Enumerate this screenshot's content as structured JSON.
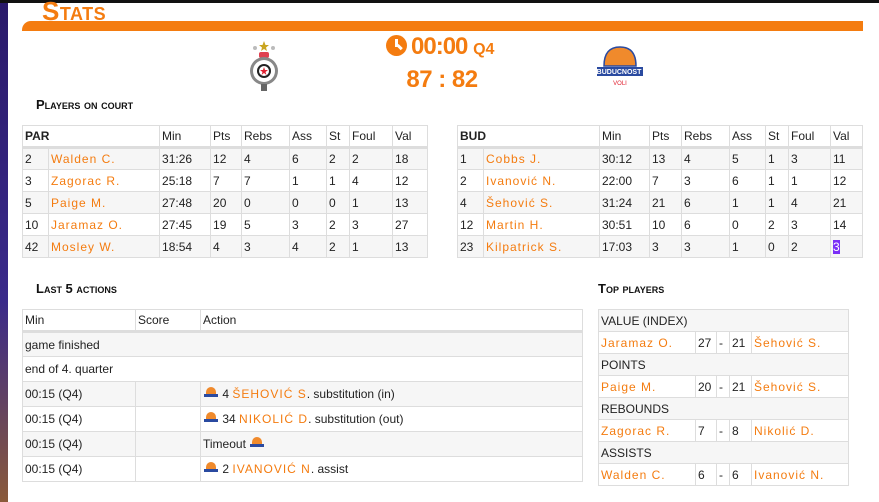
{
  "page": {
    "title": "Stats",
    "accent": "#f47c10"
  },
  "game": {
    "time": "00:00",
    "quarter": "Q4",
    "score": "87 : 82",
    "home_logo": "partizan-logo",
    "away_logo": "buducnost-logo",
    "away_logo_text": "BUDUCNOST VOLI"
  },
  "on_court": {
    "heading": "Players on court",
    "columns": [
      "Min",
      "Pts",
      "Rebs",
      "Ass",
      "St",
      "Foul",
      "Val"
    ],
    "home": {
      "team": "PAR",
      "rows": [
        [
          "2",
          "Walden C.",
          "31:26",
          "12",
          "4",
          "6",
          "2",
          "2",
          "18"
        ],
        [
          "3",
          "Zagorac R.",
          "25:18",
          "7",
          "7",
          "1",
          "1",
          "4",
          "12"
        ],
        [
          "5",
          "Paige M.",
          "27:48",
          "20",
          "0",
          "0",
          "0",
          "1",
          "13"
        ],
        [
          "10",
          "Jaramaz O.",
          "27:45",
          "19",
          "5",
          "3",
          "2",
          "3",
          "27"
        ],
        [
          "42",
          "Mosley W.",
          "18:54",
          "4",
          "3",
          "4",
          "2",
          "1",
          "13"
        ]
      ]
    },
    "away": {
      "team": "BUD",
      "rows": [
        [
          "1",
          "Cobbs J.",
          "30:12",
          "13",
          "4",
          "5",
          "1",
          "3",
          "11"
        ],
        [
          "2",
          "Ivanović N.",
          "22:00",
          "7",
          "3",
          "6",
          "1",
          "1",
          "12"
        ],
        [
          "4",
          "Šehović S.",
          "31:24",
          "21",
          "6",
          "1",
          "1",
          "4",
          "21"
        ],
        [
          "12",
          "Martin H.",
          "30:51",
          "10",
          "6",
          "0",
          "2",
          "3",
          "14"
        ],
        [
          "23",
          "Kilpatrick S.",
          "17:03",
          "3",
          "3",
          "1",
          "0",
          "2",
          "3"
        ]
      ]
    }
  },
  "actions": {
    "heading": "Last 5 actions",
    "columns": [
      "Min",
      "Score",
      "Action"
    ],
    "rows": [
      {
        "min": "game finished"
      },
      {
        "min": "end of 4. quarter"
      },
      {
        "min": "00:15 (Q4)",
        "score": "",
        "num": "4",
        "player": "ŠEHOVIĆ S",
        "text": ". substitution (in)"
      },
      {
        "min": "00:15 (Q4)",
        "score": "",
        "num": "34",
        "player": "NIKOLIĆ D",
        "text": ". substitution (out)"
      },
      {
        "min": "00:15 (Q4)",
        "score": "",
        "pre": "Timeout"
      },
      {
        "min": "00:15 (Q4)",
        "score": "",
        "num": "2",
        "player": "IVANOVIĆ N",
        "text": ". assist"
      }
    ]
  },
  "top_players": {
    "heading": "Top players",
    "categories": [
      {
        "label": "VALUE (INDEX)",
        "home": "Jaramaz O.",
        "home_val": "27",
        "sep": "-",
        "away_val": "21",
        "away": "Šehović S."
      },
      {
        "label": "POINTS",
        "home": "Paige M.",
        "home_val": "20",
        "sep": "-",
        "away_val": "21",
        "away": "Šehović S."
      },
      {
        "label": "REBOUNDS",
        "home": "Zagorac R.",
        "home_val": "7",
        "sep": "-",
        "away_val": "8",
        "away": "Nikolić D."
      },
      {
        "label": "ASSISTS",
        "home": "Walden C.",
        "home_val": "6",
        "sep": "-",
        "away_val": "6",
        "away": "Ivanović N."
      }
    ]
  }
}
